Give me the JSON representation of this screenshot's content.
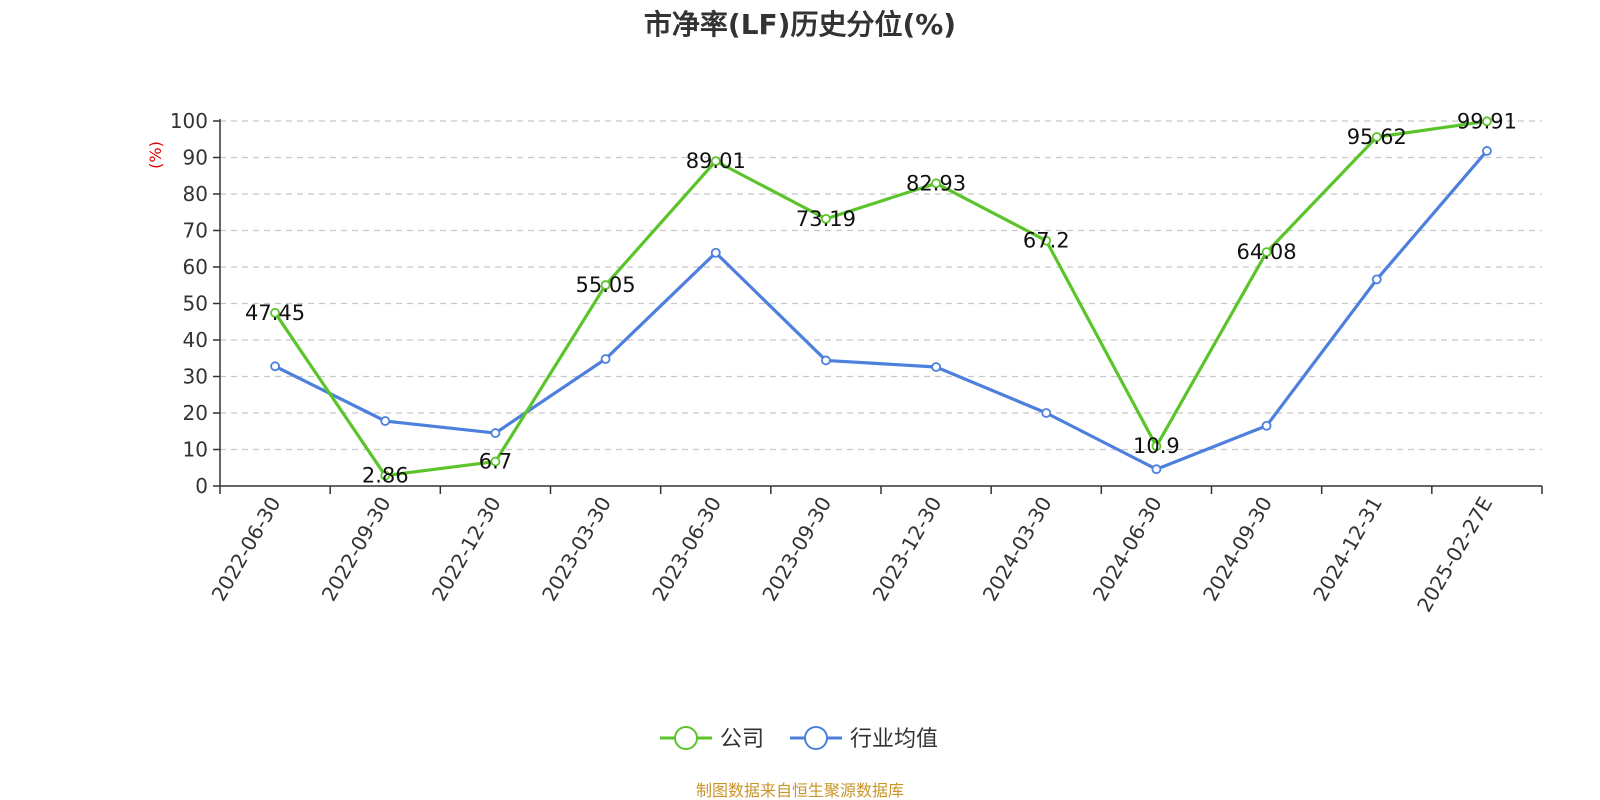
{
  "chart_data": {
    "type": "line",
    "title": "市净率(LF)历史分位(%)",
    "ylabel": "(%)",
    "xlabel": "",
    "ylim": [
      0,
      100
    ],
    "yticks": [
      0,
      10,
      20,
      30,
      40,
      50,
      60,
      70,
      80,
      90,
      100
    ],
    "grid": true,
    "legend_position": "bottom",
    "categories": [
      "2022-06-30",
      "2022-09-30",
      "2022-12-30",
      "2023-03-30",
      "2023-06-30",
      "2023-09-30",
      "2023-12-30",
      "2024-03-30",
      "2024-06-30",
      "2024-09-30",
      "2024-12-31",
      "2025-02-27E"
    ],
    "series": [
      {
        "name": "公司",
        "color": "#5bc42b",
        "show_labels": true,
        "values": [
          47.45,
          2.86,
          6.7,
          55.05,
          89.01,
          73.19,
          82.93,
          67.2,
          10.9,
          64.08,
          95.62,
          99.91
        ]
      },
      {
        "name": "行业均值",
        "color": "#4d7fdc",
        "show_labels": false,
        "values": [
          32.8,
          17.8,
          14.5,
          34.8,
          63.9,
          34.4,
          32.6,
          20.0,
          4.6,
          16.5,
          56.6,
          91.8
        ]
      }
    ]
  },
  "footer": {
    "source": "制图数据来自恒生聚源数据库"
  }
}
